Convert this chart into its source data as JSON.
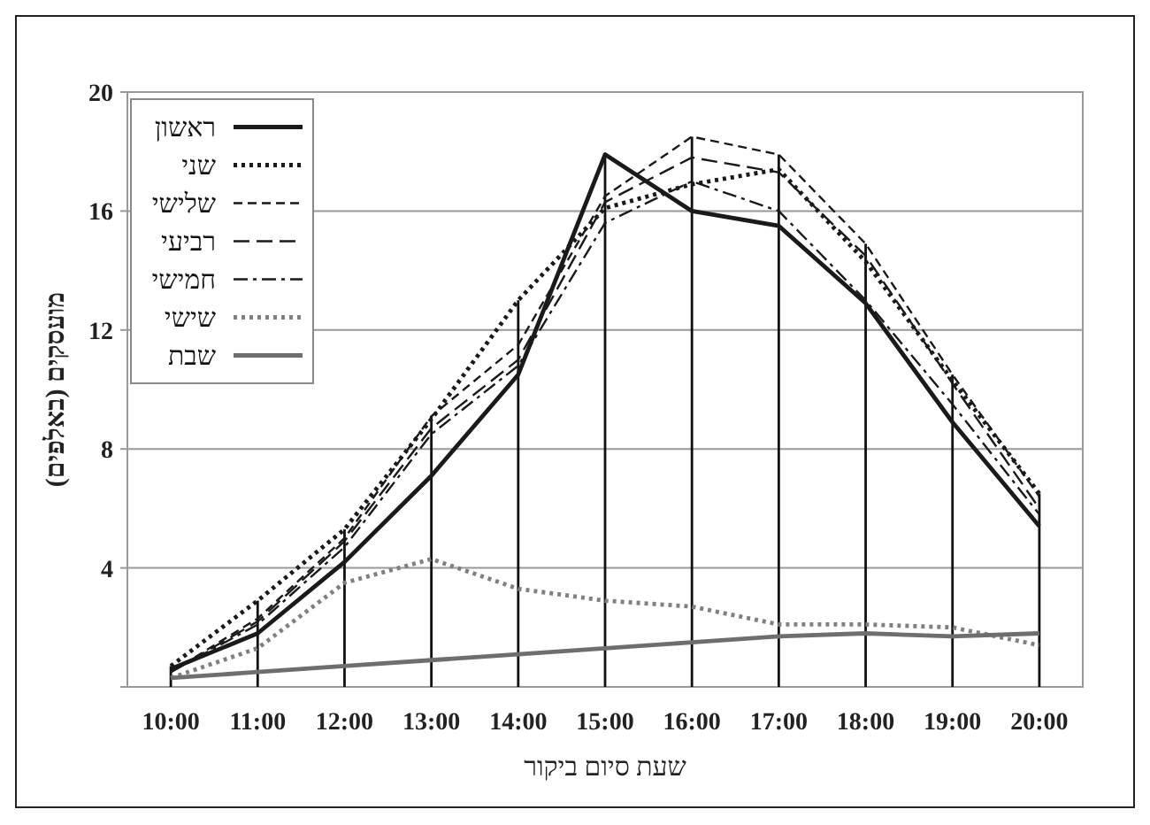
{
  "chart_data": {
    "type": "line",
    "xlabel": "שעת סיום ביקור",
    "ylabel": "מועסקים (באלפים)",
    "categories": [
      "10:00",
      "11:00",
      "12:00",
      "13:00",
      "14:00",
      "15:00",
      "16:00",
      "17:00",
      "18:00",
      "19:00",
      "20:00"
    ],
    "ylim": [
      0,
      20
    ],
    "yticks": [
      {
        "value": 0,
        "label": null
      },
      4,
      8,
      12,
      16,
      20
    ],
    "grid": "y",
    "legend": "top left",
    "marker": "none",
    "series": [
      {
        "name": "ראשון",
        "color": "#1a1a1a",
        "line_style": "solid",
        "values": [
          0.6,
          1.8,
          4.2,
          7.1,
          10.5,
          17.9,
          16.0,
          15.5,
          12.9,
          8.9,
          5.4
        ]
      },
      {
        "name": "שני",
        "color": "#1a1a1a",
        "line_style": "dotted",
        "values": [
          0.7,
          2.9,
          5.3,
          9.0,
          13.0,
          16.1,
          16.9,
          17.4,
          14.3,
          10.3,
          6.5
        ]
      },
      {
        "name": "שלישי",
        "color": "#1a1a1a",
        "line_style": "dashed",
        "values": [
          0.5,
          2.3,
          5.0,
          9.1,
          11.5,
          16.5,
          18.5,
          17.9,
          14.9,
          10.5,
          6.4
        ]
      },
      {
        "name": "רביעי",
        "color": "#1a1a1a",
        "line_style": "longdash",
        "values": [
          0.5,
          2.2,
          4.9,
          8.7,
          11.0,
          16.3,
          17.8,
          17.3,
          14.5,
          10.2,
          6.0
        ]
      },
      {
        "name": "חמישי",
        "color": "#1a1a1a",
        "line_style": "dashdot",
        "values": [
          0.5,
          2.1,
          4.7,
          8.5,
          10.8,
          15.6,
          17.0,
          16.0,
          13.0,
          9.5,
          5.8
        ]
      },
      {
        "name": "שישי",
        "color": "#808080",
        "line_style": "dotted",
        "values": [
          0.3,
          1.3,
          3.5,
          4.3,
          3.3,
          2.9,
          2.7,
          2.1,
          2.1,
          2.0,
          1.4
        ]
      },
      {
        "type": "bar",
        "color": "#111111",
        "values": [
          0.7,
          2.9,
          5.3,
          9.1,
          13.0,
          17.9,
          18.5,
          17.9,
          14.9,
          10.5,
          6.5
        ]
      },
      {
        "name": "שבת",
        "color": "#6e6e6e",
        "line_style": "solid",
        "values": [
          0.3,
          0.5,
          0.7,
          0.9,
          1.1,
          1.3,
          1.5,
          1.7,
          1.8,
          1.7,
          1.8
        ]
      }
    ]
  }
}
